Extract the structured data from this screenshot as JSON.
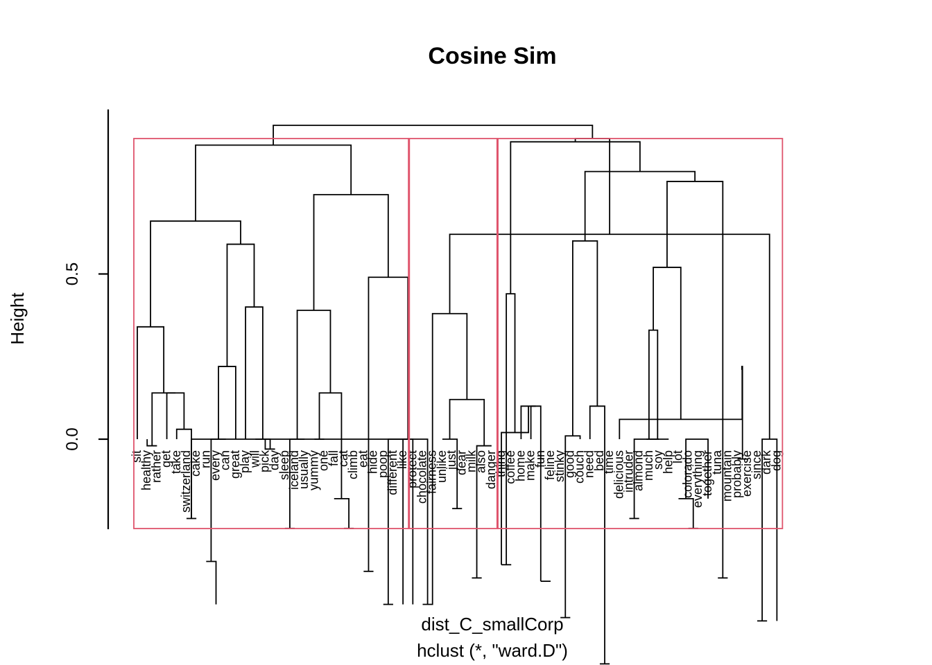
{
  "chart_data": {
    "type": "dendrogram",
    "title": "Cosine Sim",
    "ylabel": "Height",
    "xlabel": "dist_C_smallCorp",
    "sublabel": "hclust (*, \"ward.D\")",
    "y_ticks": [
      0.0,
      0.5
    ],
    "y_tick_labels": [
      "0.0",
      "0.5"
    ],
    "ylim": [
      -0.27,
      1.0
    ],
    "rect_color": "#DF536B",
    "line_color": "#000000",
    "leaves": [
      "sit",
      "healthy",
      "rather",
      "get",
      "take",
      "switzerland",
      "cake",
      "run",
      "every",
      "can",
      "great",
      "play",
      "will",
      "pick",
      "day",
      "sleep",
      "iceland",
      "usually",
      "yummy",
      "one",
      "fall",
      "cat",
      "climb",
      "eat",
      "hide",
      "poop",
      "different",
      "like",
      "protect",
      "chocolate",
      "fairness",
      "unlike",
      "just",
      "dear",
      "milk",
      "also",
      "danger",
      "thing",
      "coffee",
      "home",
      "make",
      "fun",
      "feline",
      "stinky",
      "good",
      "couch",
      "need",
      "bed",
      "time",
      "delicious",
      "intruder",
      "almond",
      "much",
      "soy",
      "help",
      "lot",
      "colorado",
      "everything",
      "together",
      "tuna",
      "mountain",
      "probably",
      "exercise",
      "since",
      "dark",
      "dog"
    ],
    "leaf_heights": [
      0.0,
      0.0,
      -0.02,
      0.0,
      0.0,
      -0.24,
      -0.24,
      -0.37,
      -0.5,
      0.0,
      0.0,
      0.0,
      0.0,
      0.0,
      -0.03,
      -0.27,
      -0.27,
      0.0,
      0.0,
      0.0,
      -0.18,
      -0.27,
      -0.27,
      -0.4,
      -0.4,
      -0.5,
      -0.5,
      -0.5,
      -0.5,
      -0.5,
      0.0,
      0.0,
      -0.21,
      -0.21,
      -0.42,
      -0.42,
      -0.02,
      -0.38,
      -0.38,
      0.0,
      0.0,
      -0.43,
      -0.43,
      -0.54,
      -0.54,
      0.0,
      0.0,
      -0.68,
      -0.68,
      0.0,
      -0.24,
      -0.24,
      0.0,
      0.0,
      0.0,
      -0.18,
      -0.27,
      -0.27,
      -0.18,
      -0.42,
      -0.42,
      -0.06,
      -0.06,
      -0.55,
      -0.55,
      -0.55
    ],
    "merges": [
      [
        -28,
        -29,
        0.0
      ],
      [
        -6,
        -7,
        -0.24
      ],
      [
        -8,
        -9,
        -0.37
      ],
      [
        -14,
        -15,
        -0.03
      ],
      [
        -16,
        -17,
        -0.27
      ],
      [
        -22,
        -23,
        -0.27
      ],
      [
        -24,
        -25,
        -0.4
      ],
      [
        -26,
        -27,
        -0.5
      ],
      [
        -30,
        -31,
        -0.5
      ],
      [
        -33,
        -34,
        -0.21
      ],
      [
        -35,
        -36,
        -0.42
      ],
      [
        -38,
        -39,
        -0.38
      ],
      [
        -42,
        -43,
        -0.43
      ],
      [
        -44,
        -45,
        -0.54
      ],
      [
        -48,
        -49,
        -0.68
      ],
      [
        -51,
        -52,
        -0.24
      ],
      [
        -57,
        -58,
        -0.27
      ],
      [
        -60,
        -61,
        -0.42
      ],
      [
        -62,
        -63,
        -0.06
      ],
      [
        -64,
        -65,
        -0.55
      ],
      [
        -66,
        20,
        0.0
      ],
      [
        1,
        2,
        0.0
      ],
      [
        -5,
        2,
        0.03
      ],
      [
        -4,
        23,
        0.14
      ],
      [
        -3,
        -2,
        -0.02
      ],
      [
        25,
        24,
        0.14
      ],
      [
        -1,
        26,
        0.34
      ],
      [
        3,
        -10,
        0.0
      ],
      [
        28,
        -11,
        0.22
      ],
      [
        -13,
        4,
        0.0
      ],
      [
        -12,
        30,
        0.4
      ],
      [
        29,
        31,
        0.59
      ],
      [
        27,
        32,
        0.66
      ],
      [
        -21,
        6,
        -0.18
      ],
      [
        -19,
        -20,
        0.0
      ],
      [
        34,
        35,
        0.14
      ],
      [
        5,
        -18,
        0.0
      ],
      [
        37,
        36,
        0.39
      ],
      [
        8,
        9,
        0.0
      ],
      [
        7,
        39,
        0.49
      ],
      [
        38,
        40,
        0.74
      ],
      [
        33,
        41,
        0.89
      ],
      [
        -37,
        11,
        -0.02
      ],
      [
        -32,
        10,
        0.0
      ],
      [
        44,
        43,
        0.12
      ],
      [
        -31,
        45,
        0.38
      ],
      [
        21,
        46,
        0.62
      ],
      [
        -56,
        17,
        -0.18
      ],
      [
        48,
        -59,
        0.0
      ],
      [
        -67,
        49,
        0.21
      ],
      [
        50,
        19,
        0.22
      ],
      [
        -54,
        16,
        0.0
      ],
      [
        -55,
        52,
        0.0
      ],
      [
        53,
        -53,
        0.33
      ],
      [
        -50,
        51,
        0.06
      ],
      [
        55,
        54,
        0.52
      ],
      [
        -41,
        -42,
        0.1
      ],
      [
        -40,
        57,
        0.1
      ],
      [
        -38,
        58,
        0.02
      ],
      [
        12,
        59,
        0.44
      ],
      [
        -46,
        14,
        0.01
      ],
      [
        -47,
        15,
        0.1
      ],
      [
        61,
        62,
        0.6
      ],
      [
        56,
        18,
        0.78
      ],
      [
        63,
        64,
        0.81
      ],
      [
        60,
        65,
        0.9
      ],
      [
        47,
        66,
        0.91
      ],
      [
        42,
        67,
        0.95
      ]
    ],
    "clusters": [
      {
        "from": "sit",
        "to": "like"
      },
      {
        "from": "protect",
        "to": "danger"
      },
      {
        "from": "thing",
        "to": "dog"
      }
    ]
  }
}
